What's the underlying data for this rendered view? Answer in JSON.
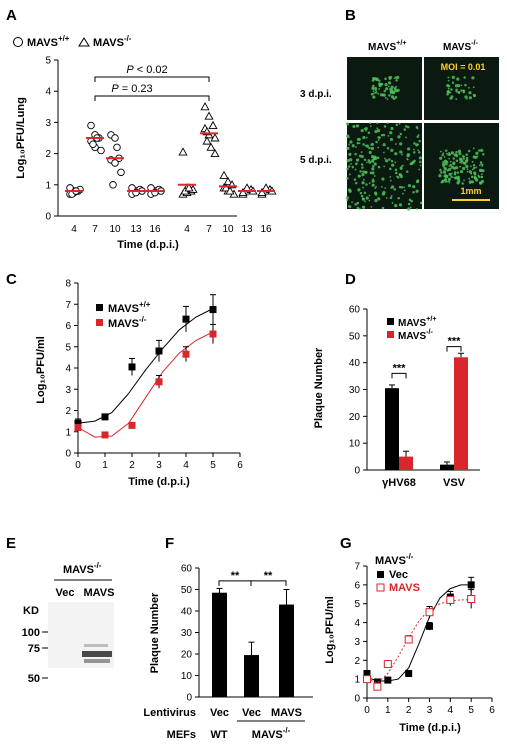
{
  "panel_letters": {
    "A": "A",
    "B": "B",
    "C": "C",
    "D": "D",
    "E": "E",
    "F": "F",
    "G": "G"
  },
  "colors": {
    "wt": "#000000",
    "ko": "#d9262b",
    "mean": "#e0262b",
    "micro_bg": "#0a1a10",
    "micro_green": "#4fbf5a",
    "moi": "#ffd21f"
  },
  "chart_data": [
    {
      "panel": "A",
      "type": "scatter",
      "ylabel": "Log₁₀PFU/Lung",
      "xlabel": "Time (d.p.i.)",
      "ylim": [
        0,
        5
      ],
      "yticks": [
        "0",
        "1",
        "2",
        "3",
        "4",
        "5"
      ],
      "legend": [
        {
          "name": "MAVS",
          "sup": "+/+",
          "marker": "circle"
        },
        {
          "name": "MAVS",
          "sup": "-/-",
          "marker": "triangle"
        }
      ],
      "annotations": [
        {
          "text": "P < 0.02"
        },
        {
          "text": "P = 0.23"
        }
      ],
      "groups": [
        {
          "series": "MAVS+/+",
          "day": "4",
          "mean": 0.8,
          "points": [
            0.7,
            0.8,
            0.8,
            0.9,
            0.75,
            0.85,
            0.7,
            0.8
          ]
        },
        {
          "series": "MAVS+/+",
          "day": "7",
          "mean": 2.5,
          "points": [
            2.9,
            2.6,
            2.5,
            2.4,
            2.2,
            2.1,
            2.3,
            2.5
          ]
        },
        {
          "series": "MAVS+/+",
          "day": "10",
          "mean": 1.85,
          "points": [
            2.6,
            2.5,
            1.85,
            1.8,
            1.7,
            1.4,
            1.0,
            2.2
          ]
        },
        {
          "series": "MAVS+/+",
          "day": "13",
          "mean": 0.8,
          "points": [
            0.7,
            0.8,
            0.85,
            0.9,
            0.75,
            0.8
          ]
        },
        {
          "series": "MAVS+/+",
          "day": "16",
          "mean": 0.8,
          "points": [
            0.7,
            0.8,
            0.85,
            0.9,
            0.75,
            0.8
          ]
        },
        {
          "series": "MAVS-/-",
          "day": "4",
          "mean": 1.0,
          "points": [
            2.05,
            0.9,
            0.8,
            0.7,
            0.75,
            0.85,
            0.8,
            0.9
          ]
        },
        {
          "series": "MAVS-/-",
          "day": "7",
          "mean": 2.65,
          "points": [
            3.5,
            3.2,
            2.9,
            2.8,
            2.6,
            2.5,
            2.4,
            2.2,
            2.0,
            2.7
          ]
        },
        {
          "series": "MAVS-/-",
          "day": "10",
          "mean": 0.95,
          "points": [
            1.3,
            1.1,
            1.0,
            0.9,
            0.8,
            0.7,
            0.9,
            0.8
          ]
        },
        {
          "series": "MAVS-/-",
          "day": "13",
          "mean": 0.8,
          "points": [
            0.7,
            0.8,
            0.85,
            0.75,
            0.9,
            0.8
          ]
        },
        {
          "series": "MAVS-/-",
          "day": "16",
          "mean": 0.8,
          "points": [
            0.7,
            0.8,
            0.85,
            0.75,
            0.9,
            0.8
          ]
        }
      ]
    },
    {
      "panel": "B",
      "type": "image",
      "columns": [
        {
          "name": "MAVS",
          "sup": "+/+"
        },
        {
          "name": "MAVS",
          "sup": "-/-"
        }
      ],
      "rows": [
        "3 d.p.i.",
        "5 d.p.i."
      ],
      "moi_label": "MOI = 0.01",
      "scalebar_label": "1mm"
    },
    {
      "panel": "C",
      "type": "line",
      "ylabel": "Log₁₀PFU/ml",
      "xlabel": "Time (d.p.i.)",
      "xlim": [
        0,
        6
      ],
      "ylim": [
        0,
        8
      ],
      "xticks": [
        "0",
        "1",
        "2",
        "3",
        "4",
        "5",
        "6"
      ],
      "yticks": [
        "0",
        "1",
        "2",
        "3",
        "4",
        "5",
        "6",
        "7",
        "8"
      ],
      "legend": [
        {
          "name": "MAVS",
          "sup": "+/+"
        },
        {
          "name": "MAVS",
          "sup": "-/-"
        }
      ],
      "series": [
        {
          "name": "MAVS+/+",
          "x": [
            0,
            1,
            2,
            3,
            4,
            5
          ],
          "y": [
            1.4,
            1.7,
            4.05,
            4.8,
            6.3,
            6.75
          ],
          "err": [
            0.2,
            0.1,
            0.4,
            0.5,
            0.6,
            0.7
          ],
          "fit": [
            1.4,
            1.5,
            1.9,
            2.8,
            3.9,
            4.9,
            5.8,
            6.4,
            6.8
          ]
        },
        {
          "name": "MAVS-/-",
          "x": [
            0,
            1,
            2,
            3,
            4,
            5
          ],
          "y": [
            1.2,
            0.85,
            1.3,
            3.35,
            4.65,
            5.6
          ],
          "err": [
            0.15,
            0.1,
            0.1,
            0.3,
            0.35,
            0.45
          ],
          "fit": [
            1.2,
            0.75,
            0.8,
            1.4,
            2.6,
            3.8,
            4.7,
            5.3,
            5.7
          ]
        }
      ]
    },
    {
      "panel": "D",
      "type": "bar",
      "ylabel": "Plaque Number",
      "ylim": [
        0,
        60
      ],
      "yticks": [
        "0",
        "10",
        "20",
        "30",
        "40",
        "50",
        "60"
      ],
      "categories": [
        "γHV68",
        "VSV"
      ],
      "legend": [
        {
          "name": "MAVS",
          "sup": "+/+"
        },
        {
          "name": "MAVS",
          "sup": "-/-"
        }
      ],
      "series": [
        {
          "name": "MAVS+/+",
          "values": [
            30.5,
            2
          ],
          "err": [
            1.2,
            1
          ]
        },
        {
          "name": "MAVS-/-",
          "values": [
            5,
            42
          ],
          "err": [
            2,
            1.5
          ]
        }
      ],
      "significance": [
        "***",
        "***"
      ]
    },
    {
      "panel": "E",
      "type": "blot",
      "title": {
        "name": "MAVS",
        "sup": "-/-"
      },
      "lanes": [
        "Vec",
        "MAVS"
      ],
      "kd_label": "KD",
      "markers": [
        "100",
        "75",
        "50"
      ]
    },
    {
      "panel": "F",
      "type": "bar",
      "ylabel": "Plaque Number",
      "ylim": [
        0,
        60
      ],
      "yticks": [
        "0",
        "10",
        "20",
        "30",
        "40",
        "50",
        "60"
      ],
      "categories": [
        "Vec",
        "Vec",
        "MAVS"
      ],
      "values": [
        48.5,
        19.5,
        43
      ],
      "err": [
        2,
        6,
        7
      ],
      "row_labels": {
        "lentivirus": "Lentivirus",
        "mefs": "MEFs"
      },
      "mef_labels": [
        "WT",
        "MAVS"
      ],
      "mef_sup": "-/-",
      "significance": [
        "**",
        "**"
      ]
    },
    {
      "panel": "G",
      "type": "line",
      "title": {
        "name": "MAVS",
        "sup": "-/-"
      },
      "ylabel": "Log₁₀PFU/ml",
      "xlabel": "Time (d.p.i.)",
      "xlim": [
        0,
        6
      ],
      "ylim": [
        0,
        7
      ],
      "xticks": [
        "0",
        "1",
        "2",
        "3",
        "4",
        "5",
        "6"
      ],
      "yticks": [
        "0",
        "1",
        "2",
        "3",
        "4",
        "5",
        "6",
        "7"
      ],
      "legend": [
        "Vec",
        "MAVS"
      ],
      "series": [
        {
          "name": "Vec",
          "x": [
            0,
            0.5,
            1,
            2,
            3,
            4,
            5
          ],
          "y": [
            1.3,
            0.85,
            0.95,
            1.3,
            3.8,
            5.35,
            6.0
          ],
          "err": [
            0.1,
            0.1,
            0.1,
            0.1,
            0.2,
            0.3,
            0.4
          ],
          "fit": [
            1.1,
            0.9,
            0.9,
            1.0,
            1.6,
            2.9,
            4.3,
            5.3,
            5.8,
            6.0,
            6.0
          ]
        },
        {
          "name": "MAVS",
          "x": [
            0,
            0.5,
            1,
            2,
            3,
            4,
            5
          ],
          "y": [
            1.0,
            0.6,
            1.8,
            3.1,
            4.55,
            5.2,
            5.25
          ],
          "err": [
            0.2,
            0.15,
            0.1,
            0.2,
            0.3,
            0.3,
            0.5
          ],
          "fit": [
            1.0,
            0.8,
            1.3,
            2.2,
            3.2,
            4.1,
            4.7,
            5.0,
            5.15,
            5.2,
            5.2
          ]
        }
      ]
    }
  ]
}
